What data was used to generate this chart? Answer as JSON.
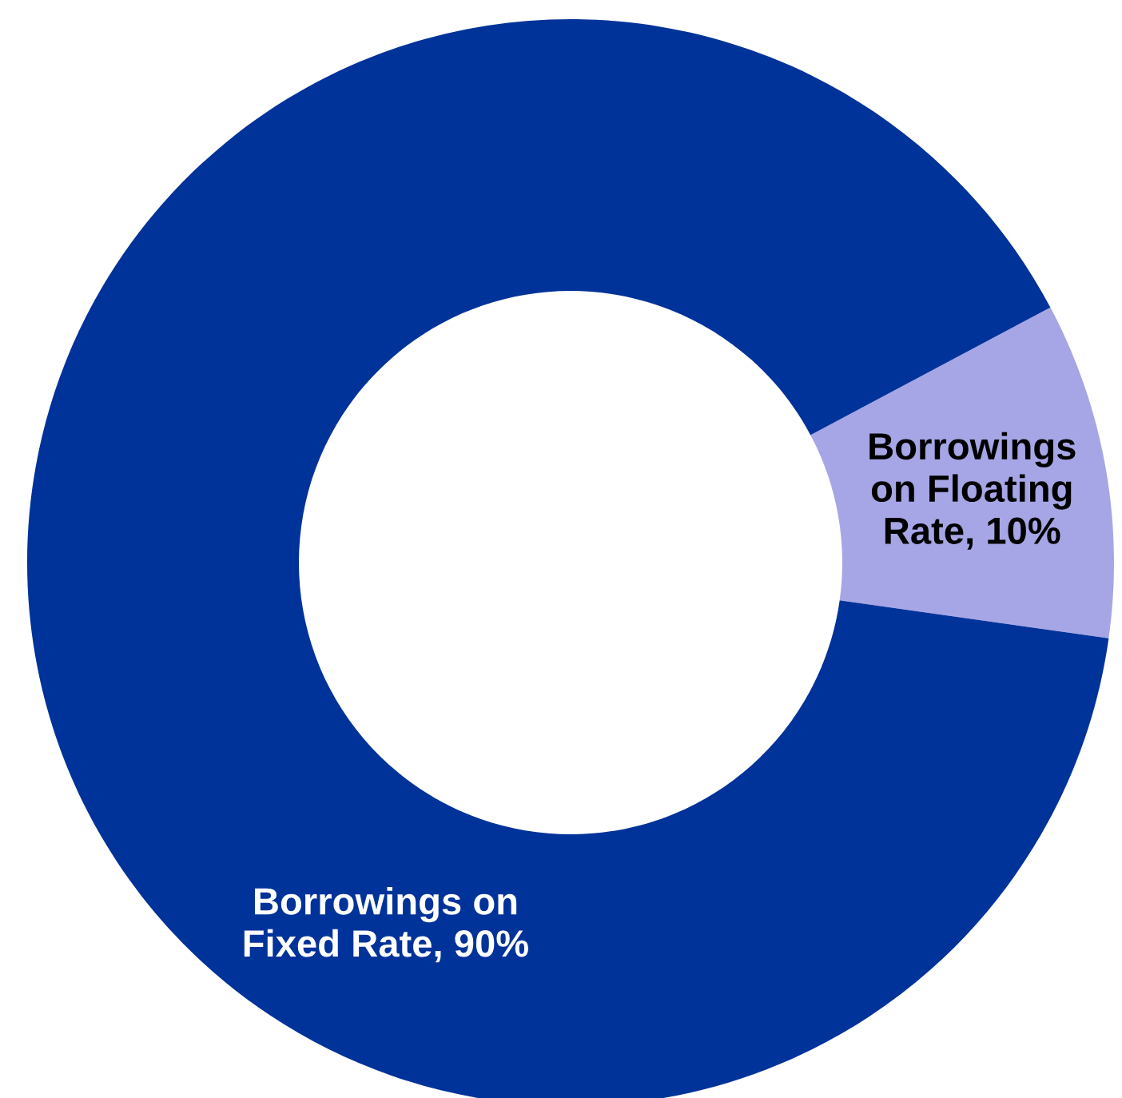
{
  "chart_data": {
    "type": "donut",
    "categories": [
      "Borrowings on Floating Rate",
      "Borrowings on Fixed Rate"
    ],
    "values": [
      10,
      90
    ],
    "colors": [
      "#a6a6e6",
      "#003399"
    ],
    "value_labels": [
      "10%",
      "90%"
    ]
  }
}
